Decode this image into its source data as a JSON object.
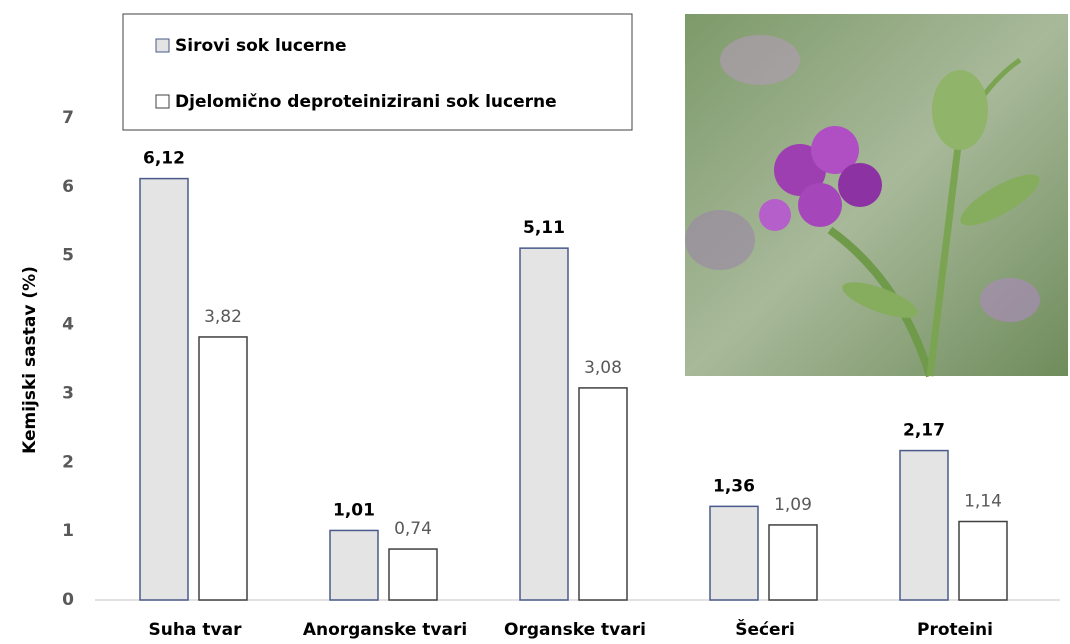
{
  "chart_data": {
    "type": "bar",
    "ylabel": "Kemijski sastav (%)",
    "categories": [
      "Suha tvar",
      "Anorganske tvari",
      "Organske tvari",
      "Šećeri",
      "Proteini"
    ],
    "series": [
      {
        "name": "Sirovi sok lucerne",
        "color": "#e4e4e4",
        "edgecolor": "#4a5a8a",
        "values": [
          6.12,
          1.01,
          5.11,
          1.36,
          2.17
        ],
        "value_labels": [
          "6,12",
          "1,01",
          "5,11",
          "1,36",
          "2,17"
        ]
      },
      {
        "name": "Djelomično deproteinizirani sok lucerne",
        "color": "#ffffff",
        "edgecolor": "#404040",
        "values": [
          3.82,
          0.74,
          3.08,
          1.09,
          1.14
        ],
        "value_labels": [
          "3,82",
          "0,74",
          "3,08",
          "1,09",
          "1,14"
        ]
      }
    ],
    "ylim": [
      0,
      7
    ],
    "yticks": [
      0,
      1,
      2,
      3,
      4,
      5,
      6,
      7
    ],
    "grid": false
  }
}
